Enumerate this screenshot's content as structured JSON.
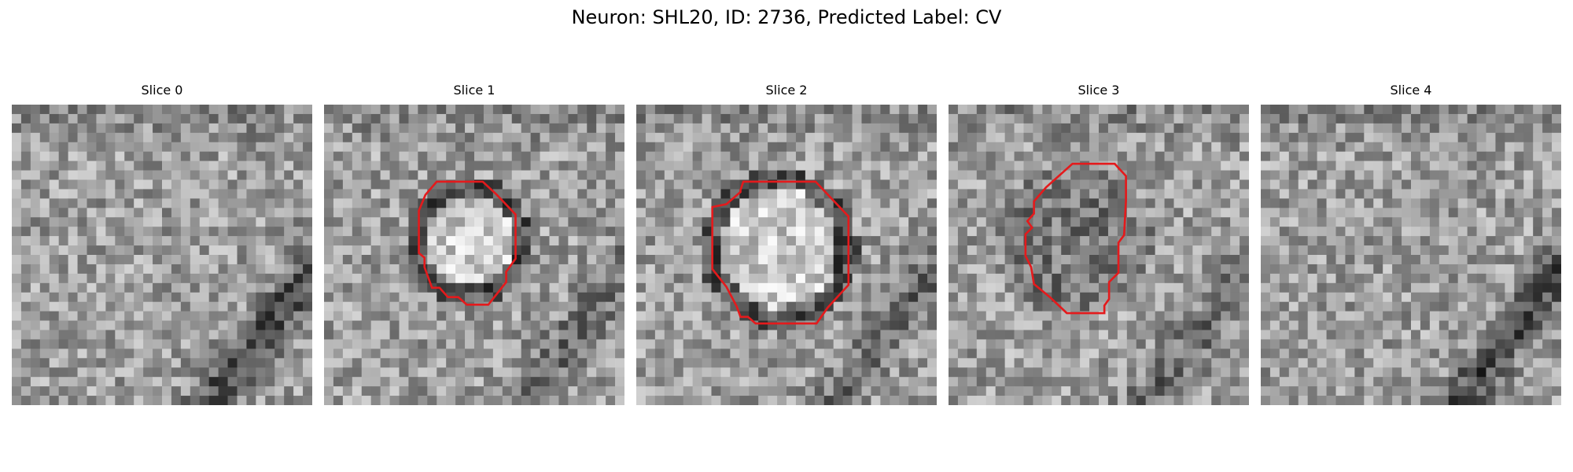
{
  "figure": {
    "title": "Neuron: SHL20, ID: 2736, Predicted Label: CV"
  },
  "colors": {
    "contour": "#e41a1c",
    "background": "#ffffff"
  },
  "panels": [
    {
      "title": "Slice 0",
      "has_contour": false,
      "seed": 11,
      "feature": "none"
    },
    {
      "title": "Slice 1",
      "has_contour": true,
      "seed": 23,
      "feature": "bright-cell-dark-ring"
    },
    {
      "title": "Slice 2",
      "has_contour": true,
      "seed": 37,
      "feature": "bright-cell-dark-ring"
    },
    {
      "title": "Slice 3",
      "has_contour": true,
      "seed": 41,
      "feature": "dark-cell"
    },
    {
      "title": "Slice 4",
      "has_contour": false,
      "seed": 53,
      "feature": "none"
    }
  ]
}
